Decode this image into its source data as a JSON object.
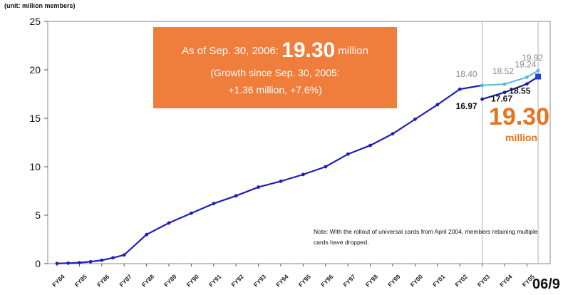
{
  "unit_label": "(unit: million members)",
  "callout": {
    "line1_prefix": "As of Sep. 30, 2006:",
    "line1_value": "19.30",
    "line1_suffix": "million",
    "line2": "(Growth since Sep. 30, 2005:",
    "line3": "+1.36 million, +7.6%)"
  },
  "highlight": {
    "value": "19.30",
    "unit": "million"
  },
  "note": "Note: With the rollout of universal cards from April 2004, members retaining multiple cards have dropped.",
  "corner_label": "06/9",
  "chart_data": {
    "type": "line",
    "title": "",
    "xlabel": "",
    "ylabel": "",
    "ylim": [
      0,
      25
    ],
    "yticks": [
      0,
      5,
      10,
      15,
      20,
      25
    ],
    "grid": false,
    "categories": [
      "FY84",
      "FY85",
      "FY86",
      "FY87",
      "FY88",
      "FY89",
      "FY90",
      "FY91",
      "FY92",
      "FY93",
      "FY94",
      "FY95",
      "FY96",
      "FY97",
      "FY98",
      "FY99",
      "FY00",
      "FY01",
      "FY02",
      "FY03",
      "FY04",
      "FY05"
    ],
    "series": [
      {
        "name": "main",
        "color": "#1f1fb4",
        "points": [
          {
            "x": 0.0,
            "y": 0.02
          },
          {
            "x": 0.5,
            "y": 0.05
          },
          {
            "x": 1.0,
            "y": 0.1
          },
          {
            "x": 1.5,
            "y": 0.2
          },
          {
            "x": 2.0,
            "y": 0.35
          },
          {
            "x": 2.5,
            "y": 0.6
          },
          {
            "x": 3.0,
            "y": 0.9
          },
          {
            "x": 4.0,
            "y": 3.0
          },
          {
            "x": 5.0,
            "y": 4.2
          },
          {
            "x": 6.0,
            "y": 5.2
          },
          {
            "x": 7.0,
            "y": 6.2
          },
          {
            "x": 8.0,
            "y": 7.0
          },
          {
            "x": 9.0,
            "y": 7.9
          },
          {
            "x": 10.0,
            "y": 8.5
          },
          {
            "x": 11.0,
            "y": 9.2
          },
          {
            "x": 12.0,
            "y": 10.0
          },
          {
            "x": 13.0,
            "y": 11.3
          },
          {
            "x": 14.0,
            "y": 12.2
          },
          {
            "x": 15.0,
            "y": 13.4
          },
          {
            "x": 16.0,
            "y": 14.9
          },
          {
            "x": 17.0,
            "y": 16.4
          },
          {
            "x": 18.0,
            "y": 18.0
          },
          {
            "x": 19.0,
            "y": 18.4
          }
        ]
      },
      {
        "name": "upper",
        "color": "#55b8e6",
        "points": [
          {
            "x": 19.0,
            "y": 18.4,
            "label": "18.40"
          },
          {
            "x": 20.0,
            "y": 18.52,
            "label": "18.52"
          },
          {
            "x": 21.0,
            "y": 19.24,
            "label": "19.24"
          },
          {
            "x": 21.5,
            "y": 19.92,
            "label": "19.92"
          }
        ]
      },
      {
        "name": "lower",
        "color": "#1a1a9a",
        "points": [
          {
            "x": 19.0,
            "y": 16.97,
            "label": "16.97"
          },
          {
            "x": 20.0,
            "y": 17.67,
            "label": "17.67"
          },
          {
            "x": 21.0,
            "y": 18.55,
            "label": "18.55"
          },
          {
            "x": 21.5,
            "y": 19.3
          }
        ]
      }
    ],
    "highlight_point": {
      "x": 21.5,
      "y": 19.3
    },
    "reference_lines_x": [
      19.0,
      21.5
    ]
  }
}
